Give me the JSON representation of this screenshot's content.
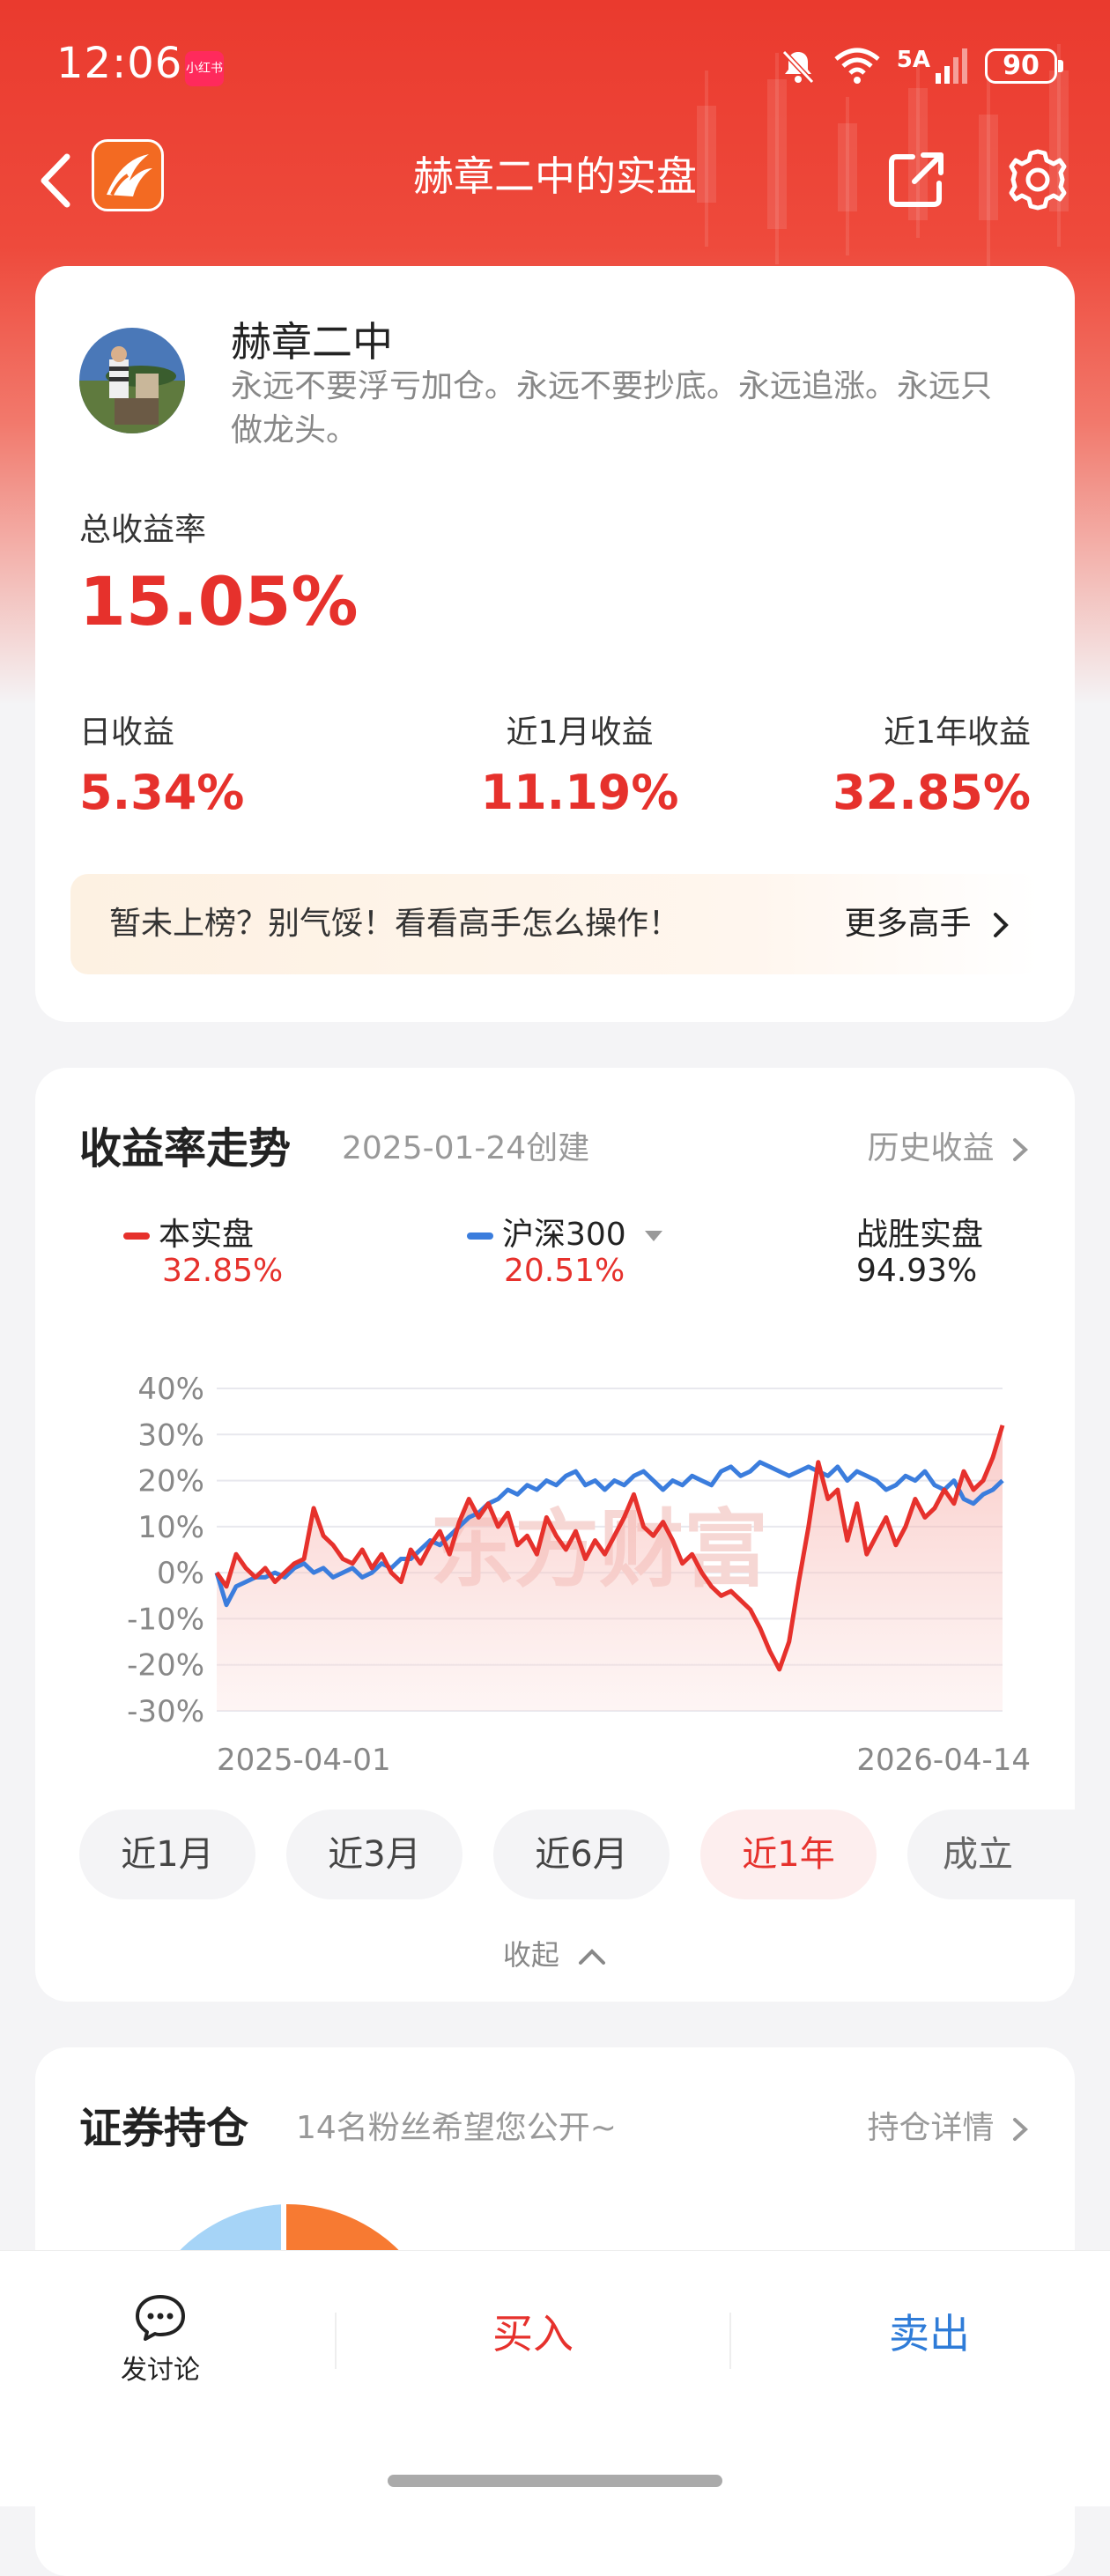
{
  "status": {
    "time": "12:06",
    "app_badge": "小红书",
    "network": "5A",
    "battery": "90"
  },
  "nav": {
    "title": "赫章二中的实盘"
  },
  "profile": {
    "name": "赫章二中",
    "bio": "永远不要浮亏加仓。永远不要抄底。永远追涨。永远只做龙头。"
  },
  "returns": {
    "total_label": "总收益率",
    "total_value": "15.05%",
    "daily_label": "日收益",
    "daily_value": "5.34%",
    "month_label": "近1月收益",
    "month_value": "11.19%",
    "year_label": "近1年收益",
    "year_value": "32.85%"
  },
  "banner": {
    "text": "暂未上榜？别气馁！看看高手怎么操作！",
    "link": "更多高手"
  },
  "trend": {
    "title": "收益率走势",
    "created": "2025-01-24创建",
    "history_link": "历史收益",
    "legend": {
      "self_label": "本实盘",
      "self_value": "32.85%",
      "index_label": "沪深300",
      "index_value": "20.51%",
      "beat_label": "战胜实盘",
      "beat_value": "94.93%"
    },
    "watermark": "东方财富",
    "ranges": [
      "近1月",
      "近3月",
      "近6月",
      "近1年",
      "成立"
    ],
    "active_range": "近1年",
    "collapse_label": "收起"
  },
  "holdings": {
    "title": "证券持仓",
    "sub": "14名粉丝希望您公开~",
    "link": "持仓详情"
  },
  "bottom": {
    "discuss": "发讨论",
    "buy": "买入",
    "sell": "卖出"
  },
  "colors": {
    "accent_red": "#e6312c",
    "index_blue": "#3b7ddd"
  },
  "chart_data": {
    "type": "line",
    "x_start": "2025-04-01",
    "x_end": "2026-04-14",
    "yticks": [
      "40%",
      "30%",
      "20%",
      "10%",
      "0%",
      "-10%",
      "-20%",
      "-30%"
    ],
    "ylim": [
      -30,
      40
    ],
    "grid": true,
    "series": [
      {
        "name": "本实盘",
        "color": "#e6312c",
        "values": [
          0,
          -3,
          4,
          1,
          -1,
          1,
          -2,
          0,
          2,
          3,
          14,
          8,
          6,
          3,
          2,
          5,
          1,
          4,
          0,
          -2,
          5,
          2,
          6,
          9,
          4,
          11,
          16,
          12,
          15,
          10,
          13,
          6,
          8,
          4,
          12,
          8,
          5,
          9,
          3,
          7,
          4,
          8,
          12,
          17,
          10,
          8,
          11,
          7,
          2,
          4,
          0,
          -3,
          -5,
          -4,
          -6,
          -8,
          -12,
          -17,
          -21,
          -15,
          -2,
          10,
          24,
          16,
          18,
          7,
          15,
          4,
          8,
          12,
          6,
          10,
          16,
          12,
          14,
          18,
          15,
          22,
          18,
          20,
          25,
          32
        ]
      },
      {
        "name": "沪深300",
        "color": "#3b7ddd",
        "values": [
          0,
          -7,
          -3,
          -2,
          -1,
          -1,
          0,
          -1,
          1,
          2,
          0,
          1,
          -1,
          0,
          1,
          -1,
          0,
          2,
          1,
          3,
          3,
          5,
          7,
          6,
          8,
          10,
          12,
          13,
          15,
          16,
          18,
          17,
          19,
          18,
          20,
          19,
          21,
          22,
          19,
          20,
          18,
          20,
          19,
          21,
          22,
          20,
          18,
          20,
          19,
          21,
          20,
          19,
          22,
          23,
          21,
          22,
          24,
          23,
          22,
          21,
          22,
          23,
          22,
          21,
          23,
          20,
          22,
          21,
          20,
          18,
          19,
          21,
          20,
          22,
          19,
          18,
          20,
          16,
          15,
          17,
          18,
          20
        ]
      }
    ]
  }
}
